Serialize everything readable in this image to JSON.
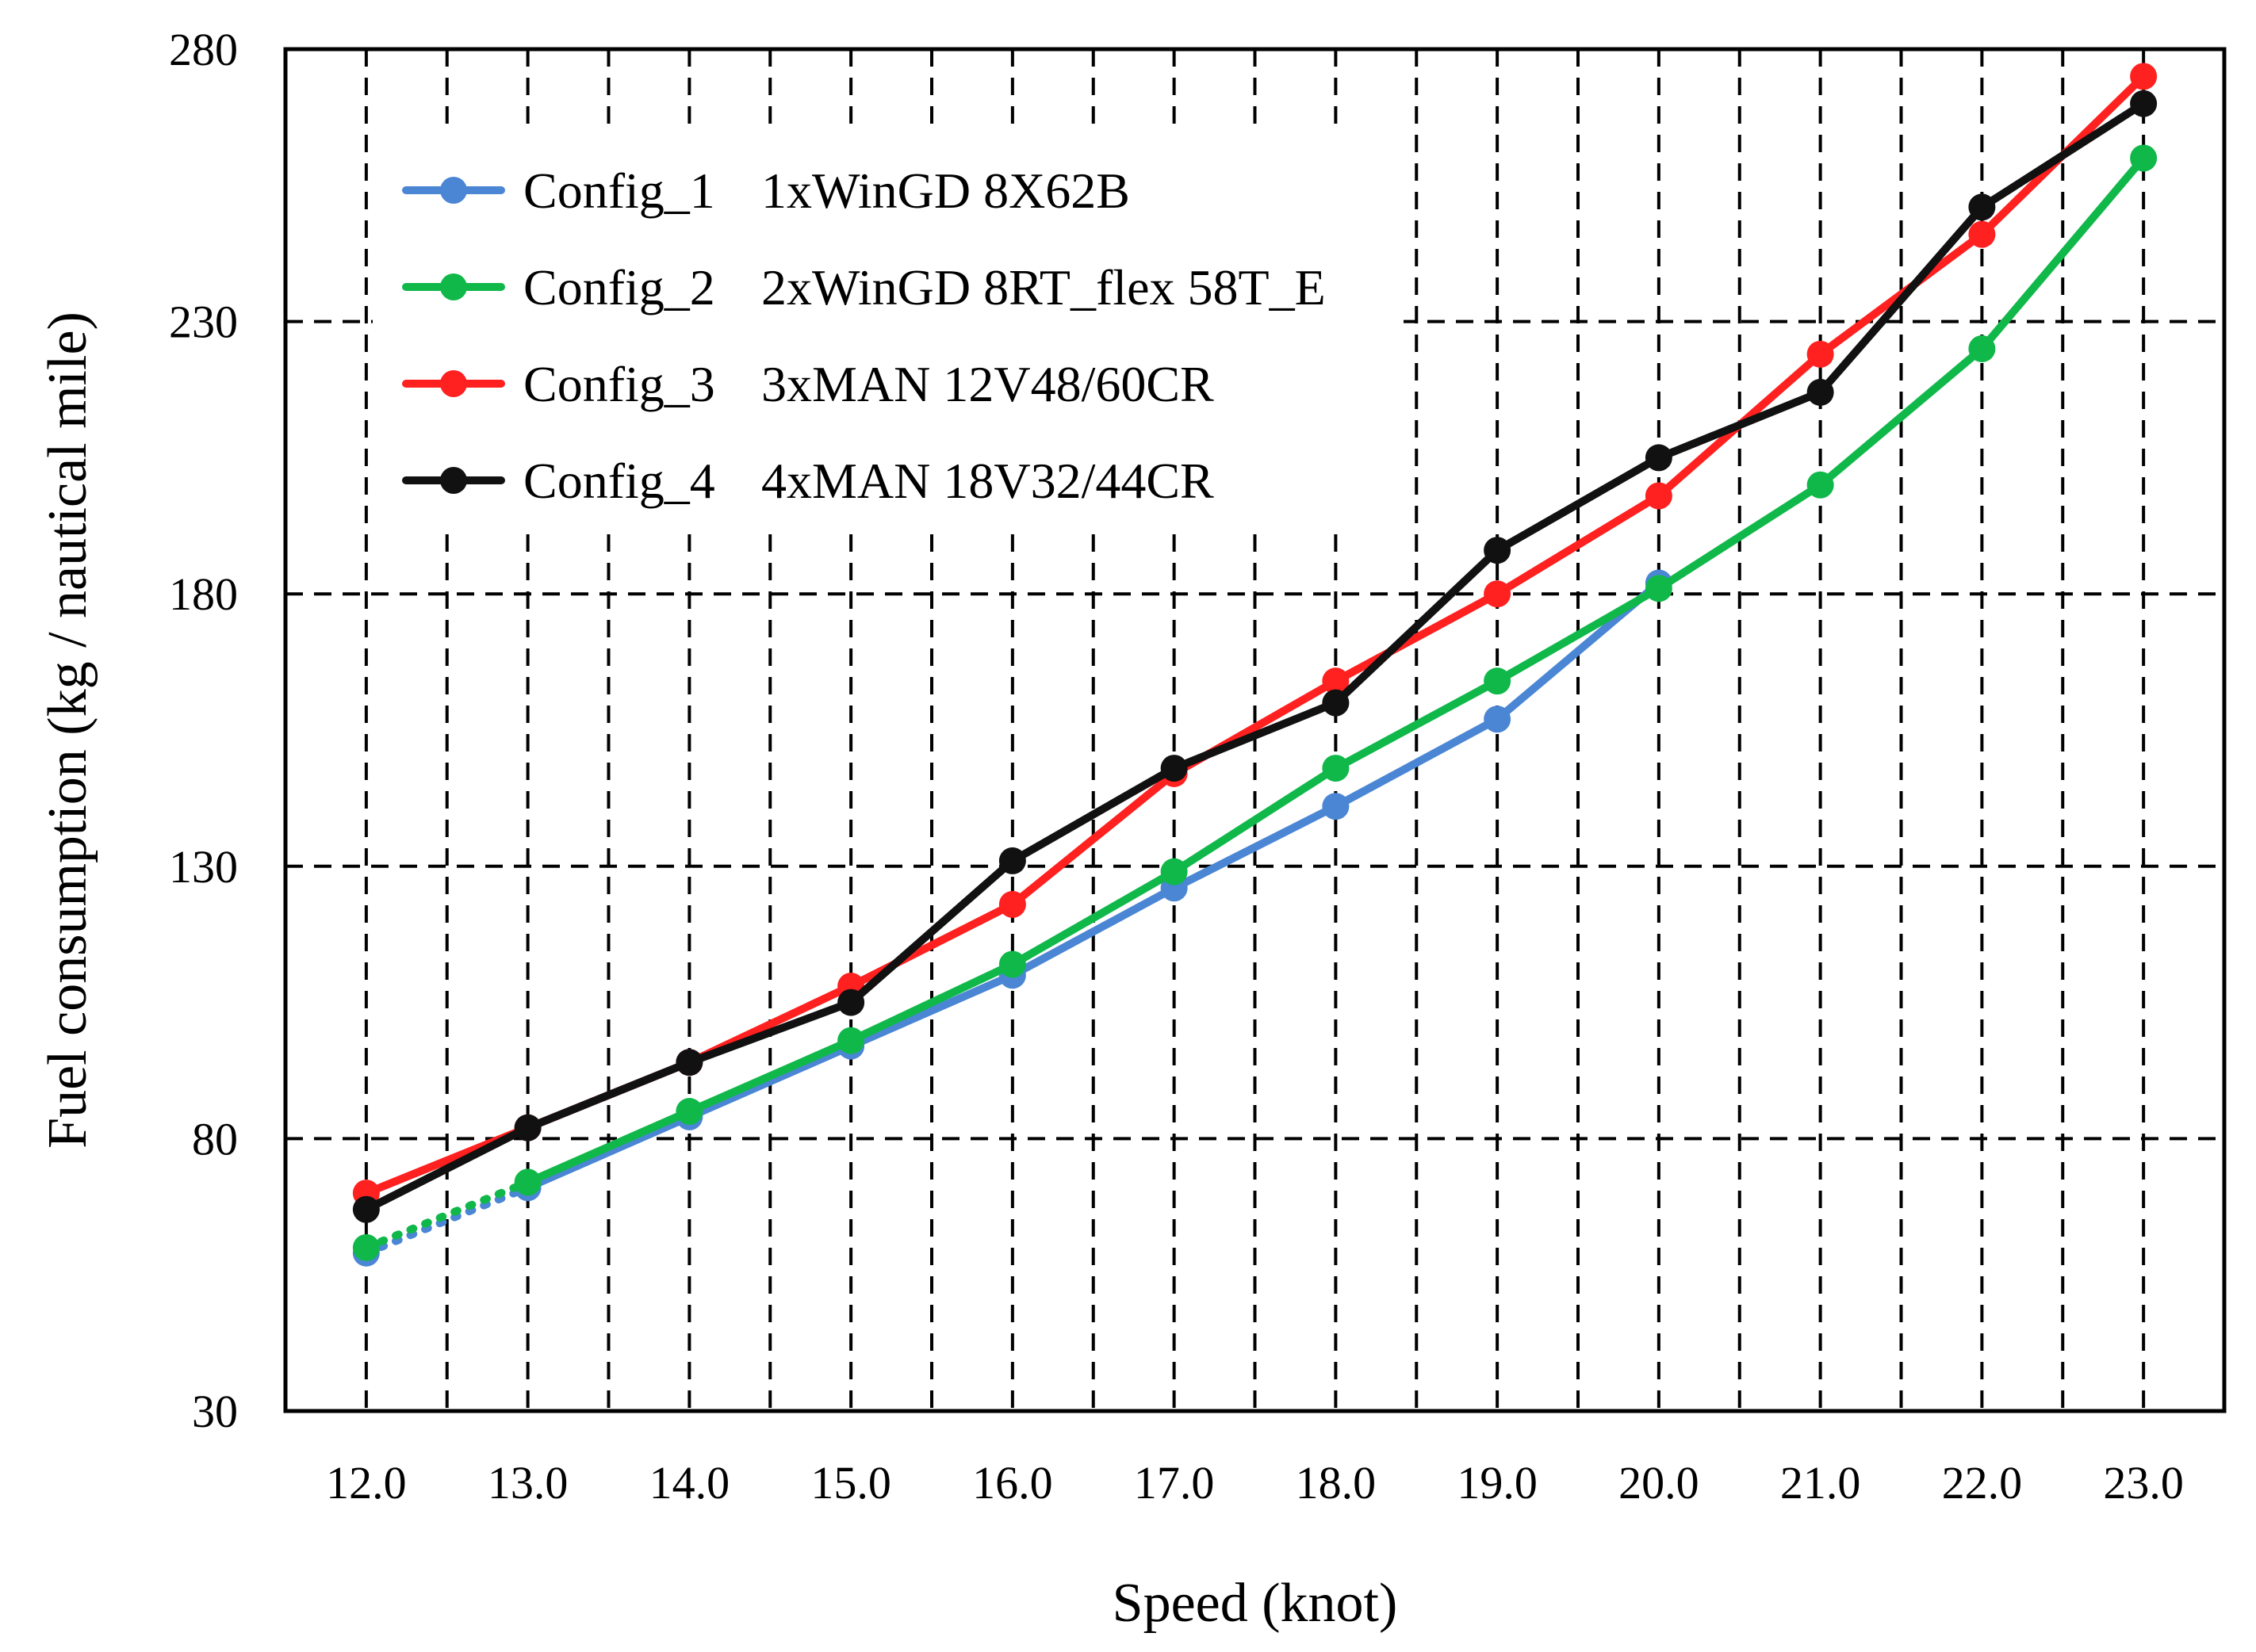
{
  "chart_data": {
    "type": "line",
    "title": "",
    "xlabel": "Speed (knot)",
    "ylabel": "Fuel consumption (kg / nautical mile)",
    "xlim": [
      11.5,
      23.5
    ],
    "ylim": [
      30,
      280
    ],
    "x_ticks": [
      "12.0",
      "13.0",
      "14.0",
      "15.0",
      "16.0",
      "17.0",
      "18.0",
      "19.0",
      "20.0",
      "21.0",
      "22.0",
      "23.0"
    ],
    "y_ticks": [
      "30",
      "80",
      "130",
      "180",
      "230",
      "280"
    ],
    "grid": true,
    "legend_position": "top-left",
    "x": [
      12,
      13,
      14,
      15,
      16,
      17,
      18,
      19,
      20,
      21,
      22,
      23
    ],
    "series": [
      {
        "name": "Config_1",
        "label": "1xWinGD 8X62B",
        "color": "#4a86d4",
        "values": [
          59,
          71,
          84,
          97,
          110,
          126,
          141,
          157,
          182,
          null,
          null,
          null
        ],
        "dotted_until_x": 13
      },
      {
        "name": "Config_2",
        "label": "2xWinGD 8RT_flex 58T_E",
        "color": "#10b84a",
        "values": [
          60,
          72,
          85,
          98,
          112,
          129,
          148,
          164,
          181,
          200,
          225,
          260
        ],
        "dotted_until_x": 13
      },
      {
        "name": "Config_3",
        "label": "3xMAN 12V48/60CR",
        "color": "#ff2020",
        "values": [
          70,
          82,
          94,
          108,
          123,
          147,
          164,
          180,
          198,
          224,
          246,
          275
        ]
      },
      {
        "name": "Config_4",
        "label": "4xMAN 18V32/44CR",
        "color": "#111111",
        "values": [
          67,
          82,
          94,
          105,
          131,
          148,
          160,
          188,
          205,
          217,
          251,
          270
        ]
      }
    ]
  }
}
